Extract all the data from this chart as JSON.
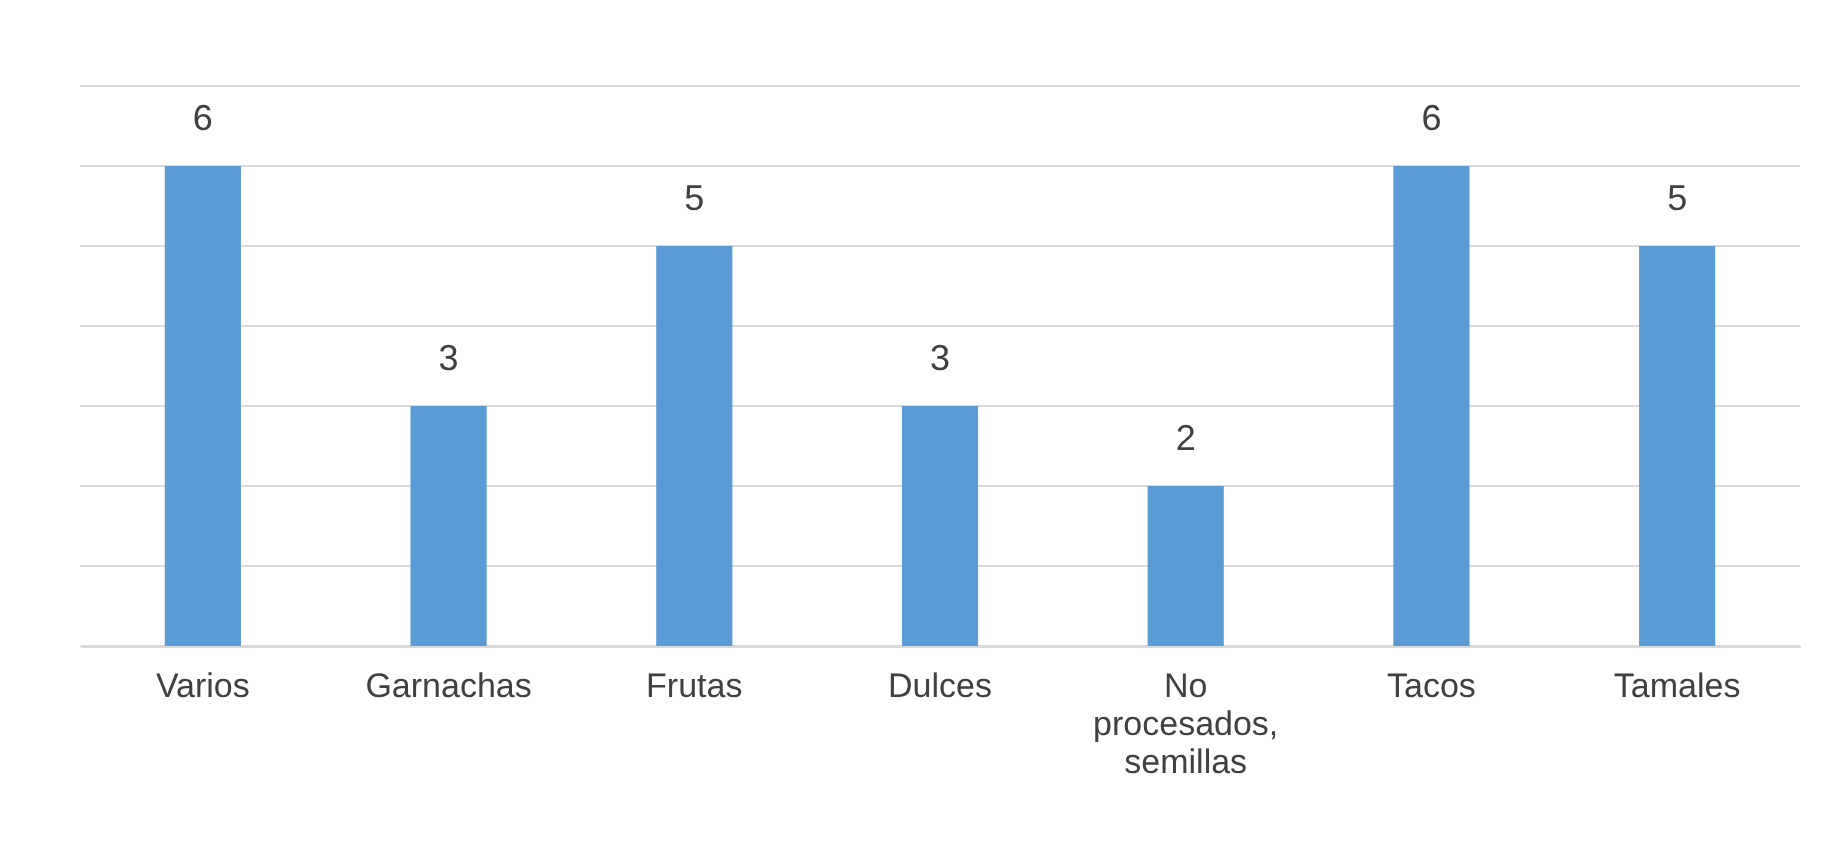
{
  "chart_data": {
    "type": "bar",
    "categories": [
      "Varios",
      "Garnachas",
      "Frutas",
      "Dulces",
      "No procesados, semillas",
      "Tacos",
      "Tamales"
    ],
    "values": [
      6,
      3,
      5,
      3,
      2,
      6,
      5
    ],
    "color": "#5b9bd5",
    "ylim": [
      0,
      7
    ],
    "yticks": [
      0,
      1,
      2,
      3,
      4,
      5,
      6,
      7
    ],
    "grid": "y",
    "tick_labels": "x",
    "data_labels": true
  }
}
